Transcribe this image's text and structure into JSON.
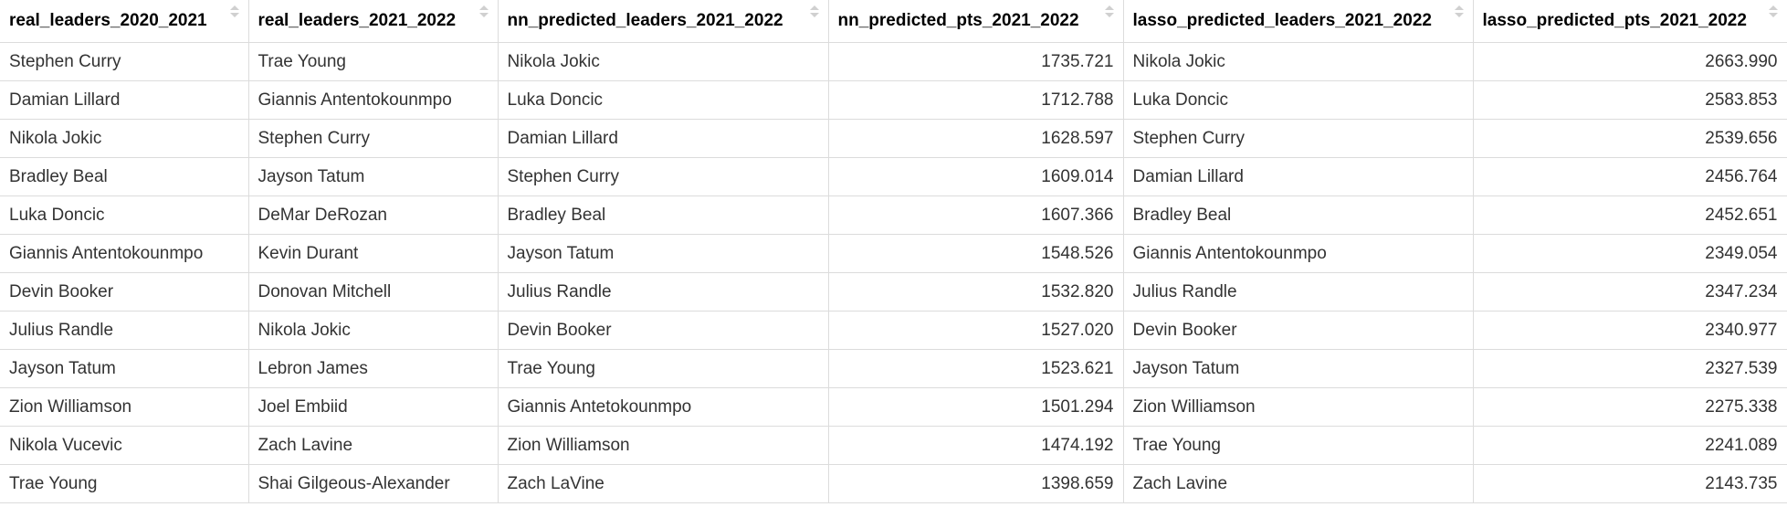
{
  "table": {
    "columns": [
      {
        "key": "real_leaders_2020_2021",
        "label": "real_leaders_2020_2021",
        "type": "text"
      },
      {
        "key": "real_leaders_2021_2022",
        "label": "real_leaders_2021_2022",
        "type": "text"
      },
      {
        "key": "nn_predicted_leaders_2021_2022",
        "label": "nn_predicted_leaders_2021_2022",
        "type": "text"
      },
      {
        "key": "nn_predicted_pts_2021_2022",
        "label": "nn_predicted_pts_2021_2022",
        "type": "num"
      },
      {
        "key": "lasso_predicted_leaders_2021_2022",
        "label": "lasso_predicted_leaders_2021_2022",
        "type": "text"
      },
      {
        "key": "lasso_predicted_pts_2021_2022",
        "label": "lasso_predicted_pts_2021_2022",
        "type": "num"
      }
    ],
    "rows": [
      [
        "Stephen Curry",
        "Trae Young",
        "Nikola Jokic",
        "1735.721",
        "Nikola Jokic",
        "2663.990"
      ],
      [
        "Damian Lillard",
        "Giannis Antentokounmpo",
        "Luka Doncic",
        "1712.788",
        "Luka Doncic",
        "2583.853"
      ],
      [
        "Nikola Jokic",
        "Stephen Curry",
        "Damian Lillard",
        "1628.597",
        "Stephen Curry",
        "2539.656"
      ],
      [
        "Bradley Beal",
        "Jayson Tatum",
        "Stephen Curry",
        "1609.014",
        "Damian Lillard",
        "2456.764"
      ],
      [
        "Luka Doncic",
        "DeMar DeRozan",
        "Bradley Beal",
        "1607.366",
        "Bradley Beal",
        "2452.651"
      ],
      [
        "Giannis Antentokounmpo",
        "Kevin Durant",
        "Jayson Tatum",
        "1548.526",
        "Giannis Antentokounmpo",
        "2349.054"
      ],
      [
        "Devin Booker",
        "Donovan Mitchell",
        "Julius Randle",
        "1532.820",
        "Julius Randle",
        "2347.234"
      ],
      [
        "Julius Randle",
        "Nikola Jokic",
        "Devin Booker",
        "1527.020",
        "Devin Booker",
        "2340.977"
      ],
      [
        "Jayson Tatum",
        "Lebron James",
        "Trae Young",
        "1523.621",
        "Jayson Tatum",
        "2327.539"
      ],
      [
        "Zion Williamson",
        "Joel Embiid",
        "Giannis Antetokounmpo",
        "1501.294",
        "Zion Williamson",
        "2275.338"
      ],
      [
        "Nikola Vucevic",
        "Zach Lavine",
        "Zion Williamson",
        "1474.192",
        "Trae Young",
        "2241.089"
      ],
      [
        "Trae Young",
        "Shai Gilgeous-Alexander",
        "Zach LaVine",
        "1398.659",
        "Zach Lavine",
        "2143.735"
      ]
    ]
  },
  "icons": {
    "sort": "sort-arrows-icon"
  },
  "colors": {
    "border": "#dcdcdc",
    "header_text": "#000000",
    "cell_text": "#333333",
    "sort_arrow": "#d0d0d0"
  }
}
